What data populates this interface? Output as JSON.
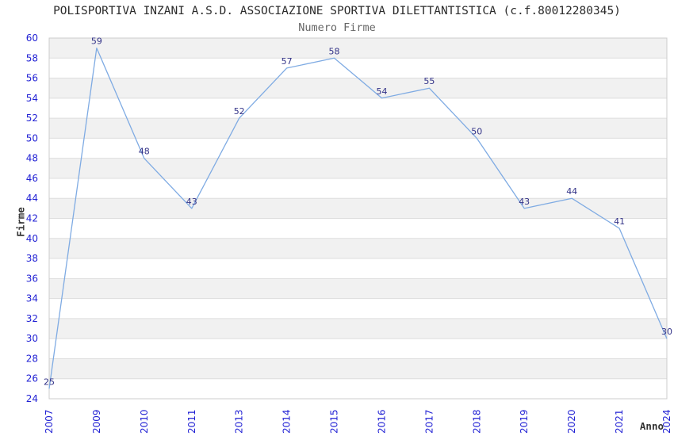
{
  "chart_data": {
    "type": "line",
    "title": "POLISPORTIVA INZANI A.S.D. ASSOCIAZIONE SPORTIVA DILETTANTISTICA (c.f.80012280345)",
    "subtitle": "Numero Firme",
    "xlabel": "Anno",
    "ylabel": "Firme",
    "categories": [
      "2007",
      "2009",
      "2010",
      "2011",
      "2013",
      "2014",
      "2015",
      "2016",
      "2017",
      "2018",
      "2019",
      "2020",
      "2021",
      "2024"
    ],
    "values": [
      25,
      59,
      48,
      43,
      52,
      57,
      58,
      54,
      55,
      50,
      43,
      44,
      41,
      30
    ],
    "ylim": [
      24,
      60
    ],
    "ytick_step": 2,
    "grid": true,
    "legend": "none",
    "point_labels_visible": true,
    "colors": {
      "line": "#7fabe3",
      "tick_label": "#2222d4",
      "point_label": "#333388",
      "band_fill": "#f1f1f1",
      "band_alt_fill": "#ffffff",
      "grid_line": "#dedede",
      "plot_border": "#cccccc",
      "title": "#2b2b2b",
      "subtitle": "#666666",
      "axis_title": "#333333"
    }
  }
}
